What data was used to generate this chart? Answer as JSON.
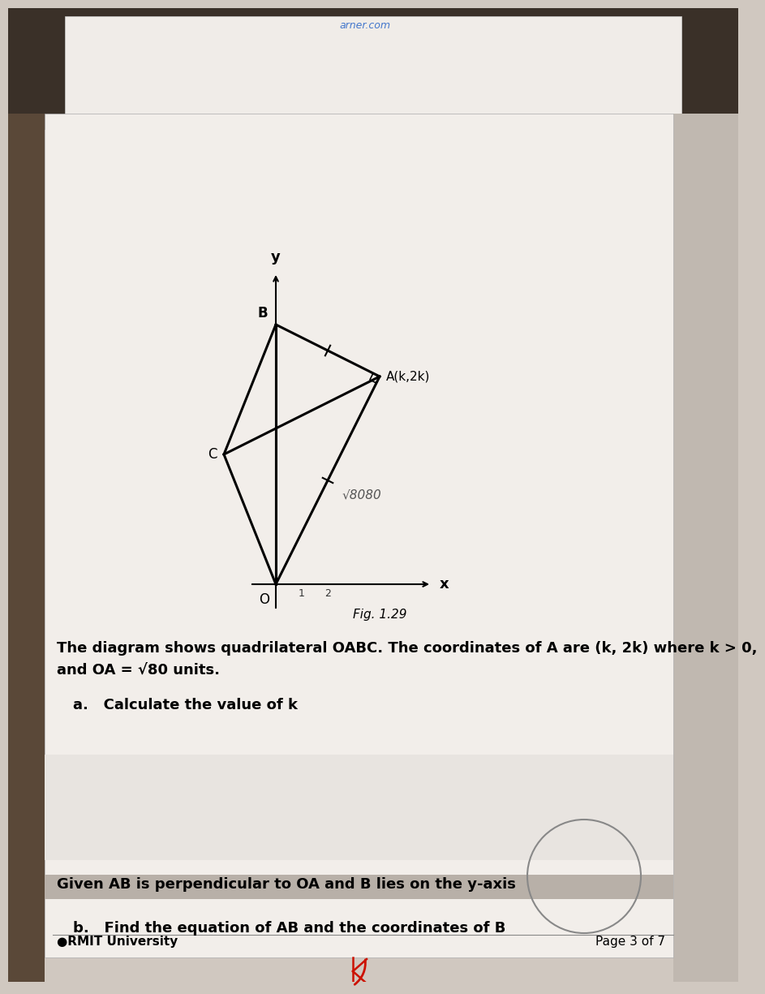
{
  "bg_color_top": "#4a3a2e",
  "bg_color_paper": "#e8e4de",
  "bg_color_main": "#d0c8c0",
  "paper_white": "#f5f3f0",
  "paper_upper": "#e0dcd8",
  "diagram_title": "Fig. 1.29",
  "point_O": [
    0,
    0
  ],
  "point_A": [
    4,
    8
  ],
  "point_B": [
    0,
    10
  ],
  "point_C": [
    -2,
    5
  ],
  "sqrt80_label": "√80",
  "label_A": "A(k,2k)",
  "label_B": "B",
  "label_C": "C",
  "label_O": "O",
  "axis_label_x": "x",
  "axis_label_y": "y",
  "line_color": "#000000",
  "text_color": "#000000",
  "question_text_1": "The diagram shows quadrilateral OABC. The coordinates of A are (k, 2k) where k > 0,",
  "question_text_2": "and OA = √80 units.",
  "question_a": "a.   Calculate the value of k",
  "given_text": "Given AB is perpendicular to OA and B lies on the y-axis",
  "question_b": "b.   Find the equation of AB and the coordinates of B",
  "footer_bullet": "●RMIT University",
  "footer_right": "Page 3 of 7",
  "header_url": "arner.com",
  "gray_band_color": "#b8b0a8",
  "sep_line_color": "#888888"
}
